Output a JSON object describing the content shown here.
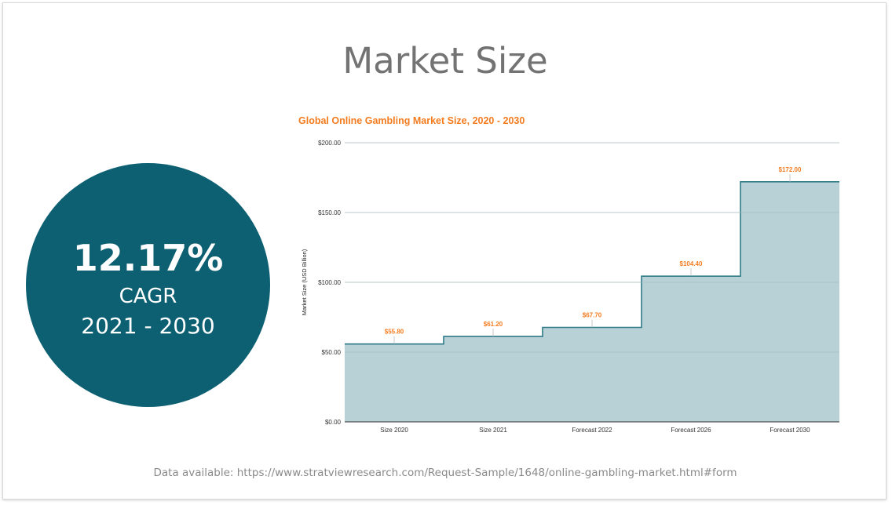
{
  "slide": {
    "title": "Market Size",
    "cagr": {
      "value": "12.17%",
      "label": "CAGR",
      "period": "2021 - 2030"
    },
    "source_note": "Data available: https://www.stratviewresearch.com/Request-Sample/1648/online-gambling-market.html#form"
  },
  "colors": {
    "circle": "#0d6072",
    "area_fill": "#b7d1d6",
    "area_line": "#2f7a87",
    "chart_title": "#f47c20",
    "data_labels": "#f47c20"
  },
  "chart_data": {
    "type": "area",
    "step": true,
    "title": "Global Online Gambling Market Size, 2020 - 2030",
    "xlabel": "",
    "ylabel": "Market Size (USD Billion)",
    "categories": [
      "Size 2020",
      "Size 2021",
      "Forecast 2022",
      "Forecast 2026",
      "Forecast 2030"
    ],
    "series": [
      {
        "values": [
          55.8,
          61.2,
          67.7,
          104.4,
          172.0
        ]
      }
    ],
    "data_labels": [
      "$55.80",
      "$61.20",
      "$67.70",
      "$104.40",
      "$172.00"
    ],
    "yticks": [
      0,
      50,
      100,
      150,
      200
    ],
    "ytick_labels": [
      "$0.00",
      "$50.00",
      "$100.00",
      "$150.00",
      "$200.00"
    ],
    "ylim": [
      0,
      200
    ],
    "grid": true,
    "legend": "none"
  }
}
